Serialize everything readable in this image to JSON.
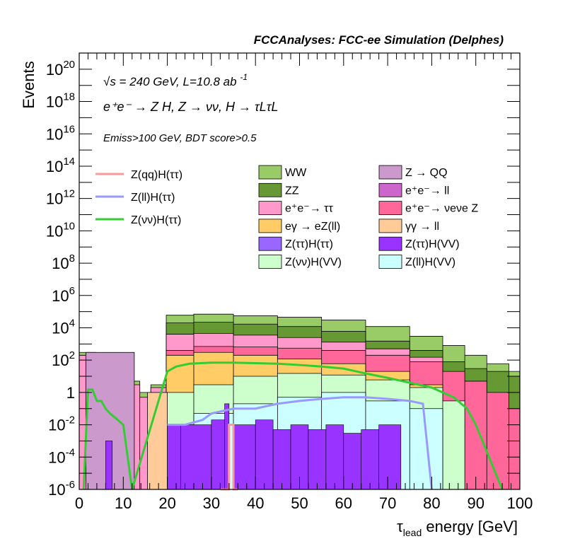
{
  "chart_data": {
    "type": "bar",
    "title": "FCCAnalyses: FCC-ee Simulation (Delphes)",
    "xlabel": "τlead energy [GeV]",
    "xlabel_main": "τ",
    "xlabel_sub": "lead",
    "xlabel_rest": " energy [GeV]",
    "ylabel": "Events",
    "xlim": [
      0,
      100
    ],
    "ylim": [
      1e-06,
      1e+21
    ],
    "log_y": true,
    "grid": false,
    "legend_placement": "top",
    "annotations": {
      "line1": "√s = 240 GeV, L=10.8 ab",
      "line1_sup": "-1",
      "line2": "e⁺e⁻ → Z H, Z → νν, H → τLτL",
      "line3": "Emiss>100 GeV, BDT score>0.5"
    },
    "x_ticks": [
      "0",
      "10",
      "20",
      "30",
      "40",
      "50",
      "60",
      "70",
      "80",
      "90",
      "100"
    ],
    "y_ticks": [
      {
        "base": "10",
        "exp": "-6"
      },
      {
        "base": "10",
        "exp": "-4"
      },
      {
        "base": "10",
        "exp": "-2"
      },
      {
        "base": "1",
        "exp": ""
      },
      {
        "base": "10",
        "exp": "2"
      },
      {
        "base": "10",
        "exp": "4"
      },
      {
        "base": "10",
        "exp": "6"
      },
      {
        "base": "10",
        "exp": "8"
      },
      {
        "base": "10",
        "exp": "10"
      },
      {
        "base": "10",
        "exp": "12"
      },
      {
        "base": "10",
        "exp": "14"
      },
      {
        "base": "10",
        "exp": "16"
      },
      {
        "base": "10",
        "exp": "18"
      },
      {
        "base": "10",
        "exp": "20"
      }
    ],
    "stack_order": [
      "Z(ll)H(VV)",
      "Z(νν)H(VV)",
      "Z(ττ)H(VV)",
      "Z(ττ)H(ττ)",
      "γγ → ll",
      "eγ → eZ(ll)",
      "e⁺e⁻ → νeνe Z",
      "e⁺e⁻ → ττ",
      "e⁺e⁻ → ll",
      "ZZ",
      "Z → QQ",
      "WW"
    ],
    "stack_totals": {
      "description": "cumulative stacked totals (Events) at each x, top edges of the stack layers",
      "x": [
        2.5,
        5,
        7.5,
        10,
        12.5,
        15,
        17.5,
        22,
        30,
        40,
        50,
        60,
        70,
        80,
        85,
        90,
        95,
        100
      ],
      "WW": [
        300,
        80,
        20,
        10,
        5,
        1,
        3,
        60000,
        70000,
        55000,
        45000,
        30000,
        12000,
        3000,
        800,
        200,
        60,
        20
      ],
      "ZZ": [
        0,
        0,
        0,
        0,
        0,
        0,
        0,
        20000,
        22000,
        17000,
        12000,
        6000,
        1500,
        400,
        80,
        30,
        20,
        10
      ],
      "e+e- -> tautau": [
        200,
        50,
        10,
        5,
        3,
        0.5,
        2,
        4000,
        4500,
        3500,
        2500,
        1300,
        500,
        150,
        10,
        0,
        0,
        0
      ],
      "e+e- -> nunuZ": [
        0,
        0,
        0,
        0,
        0,
        0,
        0,
        400,
        700,
        650,
        550,
        400,
        200,
        80,
        20,
        5,
        1,
        0.1
      ],
      "egamma -> eZ(ll)": [
        0,
        0,
        0,
        0,
        0,
        0,
        0,
        200,
        300,
        200,
        120,
        60,
        20,
        3,
        0,
        0,
        0,
        0
      ],
      "Z(nunu)H(VV)": [
        0,
        0,
        0,
        0,
        0,
        0,
        0,
        1,
        3,
        10,
        15,
        12,
        6,
        2,
        0.3,
        0,
        0,
        0
      ],
      "Z(ll)H(VV)": [
        0,
        0,
        0,
        0,
        0,
        0,
        0,
        0.01,
        0.05,
        0.2,
        0.5,
        1,
        0.3,
        0.1,
        0,
        0,
        0,
        0
      ]
    },
    "series": [
      {
        "name": "Z(qq)H(ττ)",
        "color": "#ff9999",
        "type": "line",
        "x": [
          32,
          34,
          34,
          35,
          35,
          36
        ],
        "values": [
          1e-06,
          1e-06,
          0.01,
          0.01,
          1e-06,
          1e-06
        ]
      },
      {
        "name": "Z(ll)H(ττ)",
        "color": "#9999ff",
        "type": "line",
        "x": [
          20,
          22,
          24,
          28,
          30,
          35,
          40,
          45,
          50,
          55,
          60,
          65,
          70,
          75,
          78,
          80
        ],
        "values": [
          0.01,
          0.01,
          0.01,
          0.02,
          0.05,
          0.1,
          0.1,
          0.2,
          0.3,
          0.4,
          0.5,
          0.5,
          0.4,
          0.3,
          0.2,
          1e-06
        ]
      },
      {
        "name": "Z(νν)H(ττ)",
        "color": "#33cc33",
        "type": "line",
        "x": [
          1,
          2,
          3,
          4,
          5,
          6,
          7,
          8,
          10,
          12,
          20,
          22,
          25,
          30,
          35,
          40,
          45,
          50,
          55,
          60,
          65,
          70,
          75,
          80,
          85,
          88,
          90,
          96
        ],
        "values": [
          1e-06,
          1.5,
          1.5,
          0.3,
          0.3,
          0.1,
          0.05,
          0.03,
          0.01,
          1e-06,
          20,
          40,
          60,
          70,
          70,
          65,
          60,
          50,
          40,
          30,
          15,
          8,
          4,
          2,
          0.5,
          0.1,
          0.01,
          1e-06
        ]
      }
    ],
    "legend_left": [
      {
        "name": "Z(qq)H(ττ)",
        "color": "#ff9999"
      },
      {
        "name": "Z(ll)H(ττ)",
        "color": "#9999ff"
      },
      {
        "name": "Z(νν)H(ττ)",
        "color": "#33cc33"
      }
    ],
    "legend_right": [
      {
        "name": "WW",
        "color": "#99cc66"
      },
      {
        "name": "Z → QQ",
        "color": "#cc99cc"
      },
      {
        "name": "ZZ",
        "color": "#669933"
      },
      {
        "name": "e⁺e⁻→ ll",
        "color": "#cc66cc"
      },
      {
        "name": "e⁺e⁻→ ττ",
        "color": "#ff99cc"
      },
      {
        "name": "e⁺e⁻→ νeνe Z",
        "color": "#ff6699"
      },
      {
        "name": "eγ → eZ(ll)",
        "color": "#ffcc66"
      },
      {
        "name": "γγ → ll",
        "color": "#ffcc99"
      },
      {
        "name": "Z(ττ)H(ττ)",
        "color": "#9966ff"
      },
      {
        "name": "Z(ττ)H(VV)",
        "color": "#9933ff"
      },
      {
        "name": "Z(νν)H(VV)",
        "color": "#ccffcc"
      },
      {
        "name": "Z(ll)H(VV)",
        "color": "#ccffff"
      }
    ]
  }
}
